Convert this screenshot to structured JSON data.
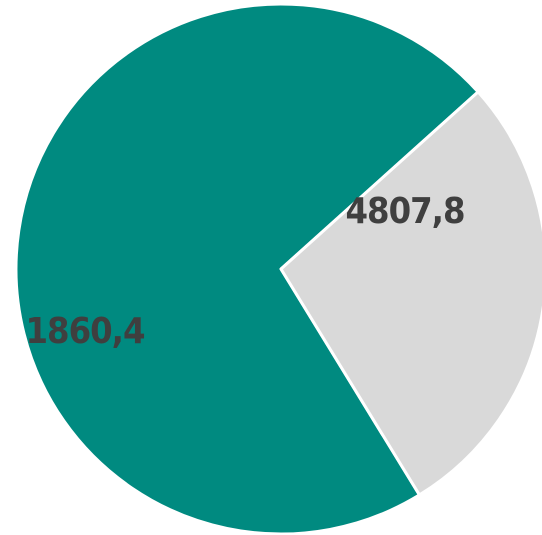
{
  "chart_data": {
    "type": "pie",
    "title": "",
    "slices": [
      {
        "label": "4807,8",
        "value": 4807.8,
        "color": "#008a80"
      },
      {
        "label": "1860,4",
        "value": 1860.4,
        "color": "#d9d9d9"
      }
    ],
    "legend": "none"
  }
}
